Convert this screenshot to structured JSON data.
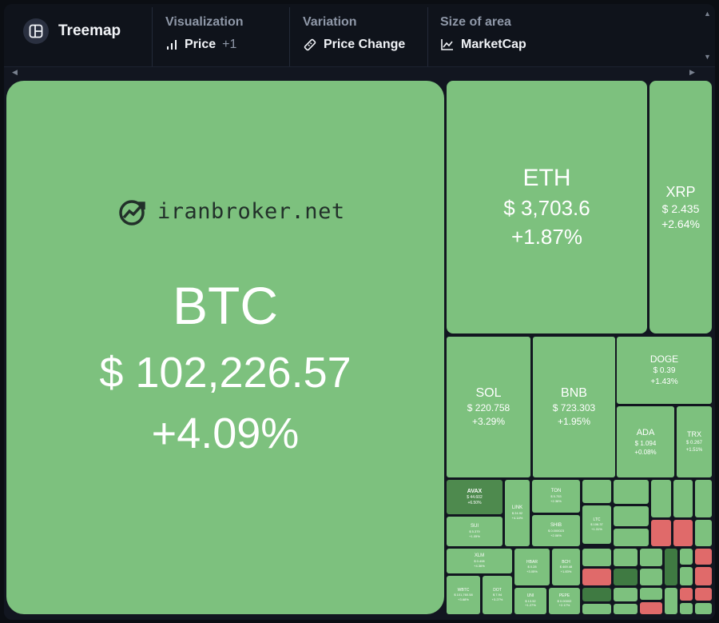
{
  "toolbar": {
    "brand": {
      "label": "Treemap",
      "icon": "layout-panels-icon"
    },
    "visualization": {
      "title": "Visualization",
      "value": "Price",
      "extra": "+1",
      "icon": "bar-chart-icon"
    },
    "variation": {
      "title": "Variation",
      "value": "Price Change",
      "icon": "ruler-icon"
    },
    "size_of_area": {
      "title": "Size of area",
      "value": "MarketCap",
      "icon": "line-chart-icon"
    }
  },
  "watermark": {
    "text": "iranbroker.net",
    "icon": "trend-chart-logo-icon"
  },
  "colors": {
    "up": "#7dc17e",
    "up_dark": "#4e8a4e",
    "down": "#e06a6a",
    "background": "#121620"
  },
  "tiles": {
    "btc": {
      "symbol": "BTC",
      "price": "$ 102,226.57",
      "change": "+4.09%"
    },
    "eth": {
      "symbol": "ETH",
      "price": "$ 3,703.6",
      "change": "+1.87%"
    },
    "xrp": {
      "symbol": "XRP",
      "price": "$ 2.435",
      "change": "+2.64%"
    },
    "sol": {
      "symbol": "SOL",
      "price": "$ 220.758",
      "change": "+3.29%"
    },
    "bnb": {
      "symbol": "BNB",
      "price": "$ 723.303",
      "change": "+1.95%"
    },
    "doge": {
      "symbol": "DOGE",
      "price": "$ 0.39",
      "change": "+1.43%"
    },
    "ada": {
      "symbol": "ADA",
      "price": "$ 1.094",
      "change": "+0.08%"
    },
    "trx": {
      "symbol": "TRX",
      "price": "$ 0.267",
      "change": "+1.51%"
    },
    "avax": {
      "symbol": "AVAX",
      "price": "$ 44.602",
      "change": "+6.50%"
    },
    "link": {
      "symbol": "LINK",
      "price": "$ 24.92",
      "change": "+4.14%"
    },
    "ton": {
      "symbol": "TON",
      "price": "$ 5.753",
      "change": "+2.36%"
    },
    "sui": {
      "symbol": "SUI",
      "price": "$ 5.379",
      "change": "+1.05%"
    },
    "shib": {
      "symbol": "SHIB",
      "price": "$ 0.000023",
      "change": "+2.06%"
    },
    "xlm": {
      "symbol": "XLM",
      "price": "$ 0.408",
      "change": "+4.36%"
    },
    "hbar": {
      "symbol": "HBAR",
      "price": "$ 0.28",
      "change": "+3.05%"
    },
    "bch": {
      "symbol": "BCH",
      "price": "$ 469.48",
      "change": "+1.83%"
    },
    "wbtc": {
      "symbol": "WBTC",
      "price": "$ 101,760.58",
      "change": "+3.68%"
    },
    "dot": {
      "symbol": "DOT",
      "price": "$ 7.94",
      "change": "+3.27%"
    },
    "uni": {
      "symbol": "UNI",
      "price": "$ 13.52",
      "change": "+1.27%"
    },
    "pepe": {
      "symbol": "PEPE",
      "price": "$ 0.00002",
      "change": "+2.17%"
    },
    "ltc": {
      "symbol": "LTC",
      "price": "$ 106.37",
      "change": "+1.31%"
    }
  }
}
